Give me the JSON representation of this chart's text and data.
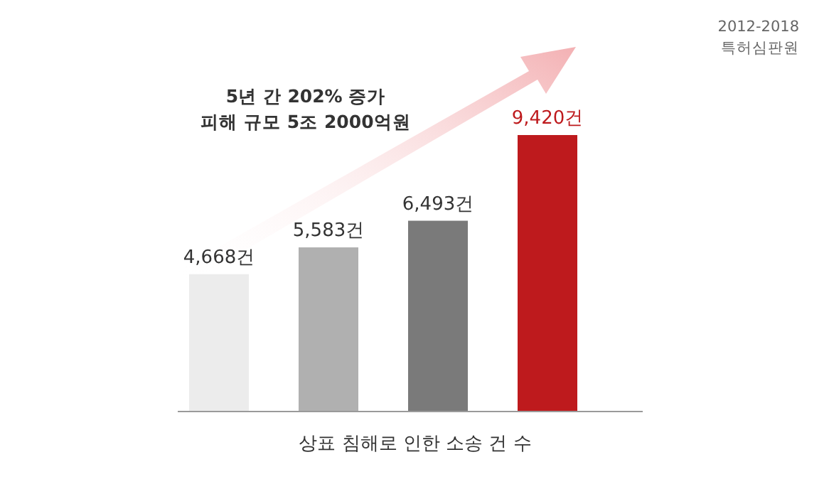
{
  "chart_data": {
    "type": "bar",
    "categories": [
      null,
      null,
      null,
      null
    ],
    "values": [
      4668,
      5583,
      6493,
      9420
    ],
    "colors": [
      "#ececec",
      "#b0b0b0",
      "#7a7a7a",
      "#be1a1d"
    ],
    "value_labels": [
      "4,668건",
      "5,583건",
      "6,493건",
      "9,420건"
    ],
    "xlabel": "상표 침해로 인한 소송 건 수",
    "annotations": [
      "2012-2018\n특허심판원",
      "5년 간 202% 증가\n피해 규모 5조 2000억원"
    ]
  }
}
